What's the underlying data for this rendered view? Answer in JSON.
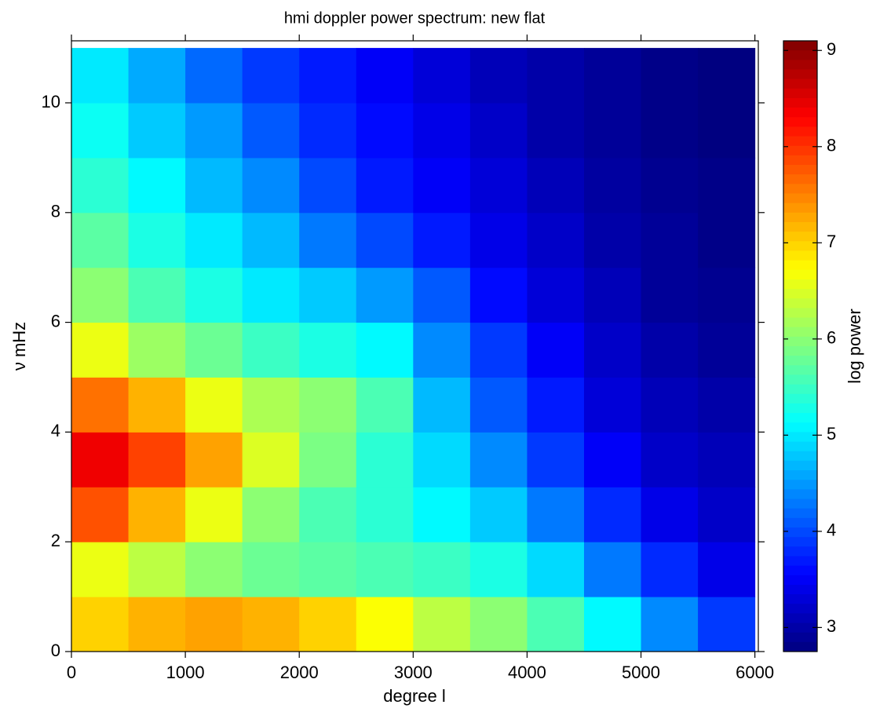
{
  "chart_data": {
    "type": "heatmap",
    "title": "hmi doppler power spectrum: new flat",
    "xlabel": "degree l",
    "ylabel": "ν mHz",
    "colorbar_label": "log power",
    "colormap": "jet",
    "xbins": [
      0,
      500,
      1000,
      1500,
      2000,
      2500,
      3000,
      3500,
      4000,
      4500,
      5000,
      5500,
      6000
    ],
    "ybins": [
      0,
      1,
      2,
      3,
      4,
      5,
      6,
      7,
      8,
      9,
      10,
      11
    ],
    "z": [
      [
        7.0,
        7.2,
        7.3,
        7.2,
        7.0,
        6.7,
        6.3,
        6.0,
        5.6,
        5.1,
        4.4,
        3.9
      ],
      [
        6.6,
        6.3,
        6.0,
        5.8,
        5.7,
        5.6,
        5.5,
        5.3,
        4.9,
        4.3,
        3.8,
        3.4
      ],
      [
        7.8,
        7.2,
        6.6,
        6.0,
        5.6,
        5.4,
        5.1,
        4.8,
        4.3,
        3.8,
        3.4,
        3.2
      ],
      [
        8.4,
        7.9,
        7.3,
        6.5,
        5.9,
        5.4,
        4.9,
        4.4,
        3.9,
        3.5,
        3.2,
        3.1
      ],
      [
        7.6,
        7.2,
        6.6,
        6.2,
        6.0,
        5.6,
        4.7,
        4.1,
        3.7,
        3.3,
        3.1,
        3.0
      ],
      [
        6.6,
        6.1,
        5.8,
        5.5,
        5.3,
        5.1,
        4.4,
        3.9,
        3.5,
        3.2,
        3.0,
        2.9
      ],
      [
        6.0,
        5.6,
        5.3,
        5.0,
        4.8,
        4.5,
        4.1,
        3.6,
        3.3,
        3.1,
        2.9,
        2.85
      ],
      [
        5.7,
        5.3,
        5.0,
        4.7,
        4.3,
        4.0,
        3.7,
        3.4,
        3.2,
        3.0,
        2.9,
        2.8
      ],
      [
        5.4,
        5.1,
        4.7,
        4.4,
        4.0,
        3.7,
        3.5,
        3.3,
        3.1,
        2.95,
        2.85,
        2.8
      ],
      [
        5.2,
        4.8,
        4.5,
        4.1,
        3.8,
        3.6,
        3.4,
        3.2,
        3.0,
        2.9,
        2.8,
        2.75
      ],
      [
        5.0,
        4.6,
        4.2,
        3.9,
        3.7,
        3.5,
        3.3,
        3.1,
        3.0,
        2.9,
        2.8,
        2.75
      ]
    ],
    "xlim": [
      0,
      6030
    ],
    "xticks": [
      0,
      1000,
      2000,
      3000,
      4000,
      5000,
      6000
    ],
    "ylim": [
      0,
      11.13
    ],
    "yticks": [
      0,
      2,
      4,
      6,
      8,
      10
    ],
    "clim": [
      2.75,
      9.1
    ],
    "cticks": [
      3,
      4,
      5,
      6,
      7,
      8,
      9
    ]
  }
}
